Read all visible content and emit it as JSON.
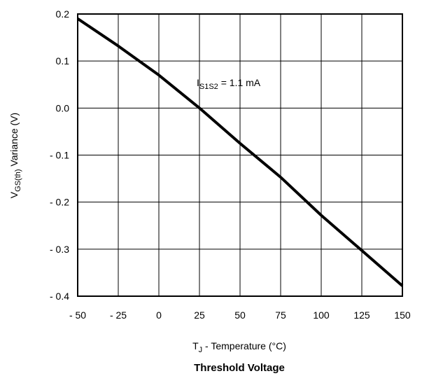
{
  "chart_data": {
    "type": "line",
    "title": "Threshold Voltage",
    "xlabel": {
      "main": "T",
      "sub": "J",
      "rest": " - Temperature (°C)"
    },
    "ylabel": {
      "main": "V",
      "sub": "GS(th)",
      "rest": "  Variance (V)"
    },
    "xlim": [
      -50,
      150
    ],
    "ylim": [
      -0.4,
      0.2
    ],
    "grid": true,
    "x_ticks": [
      -50,
      -25,
      0,
      25,
      50,
      75,
      100,
      125,
      150
    ],
    "x_tick_labels": [
      "- 50",
      "- 25",
      "0",
      "25",
      "50",
      "75",
      "100",
      "125",
      "150"
    ],
    "y_ticks": [
      0.2,
      0.1,
      0.0,
      -0.1,
      -0.2,
      -0.3,
      -0.4
    ],
    "y_tick_labels": [
      "0.2",
      "0.1",
      "0.0",
      "- 0.1",
      "- 0.2",
      "- 0.3",
      "- 0.4"
    ],
    "annotation": {
      "main": "I",
      "sub": "S1S2",
      "rest": " = 1.1 mA"
    },
    "series": [
      {
        "x": [
          -50,
          -25,
          0,
          25,
          50,
          75,
          100,
          125,
          150
        ],
        "y": [
          0.19,
          0.132,
          0.07,
          0.0,
          -0.075,
          -0.147,
          -0.228,
          -0.303,
          -0.378
        ]
      }
    ]
  }
}
